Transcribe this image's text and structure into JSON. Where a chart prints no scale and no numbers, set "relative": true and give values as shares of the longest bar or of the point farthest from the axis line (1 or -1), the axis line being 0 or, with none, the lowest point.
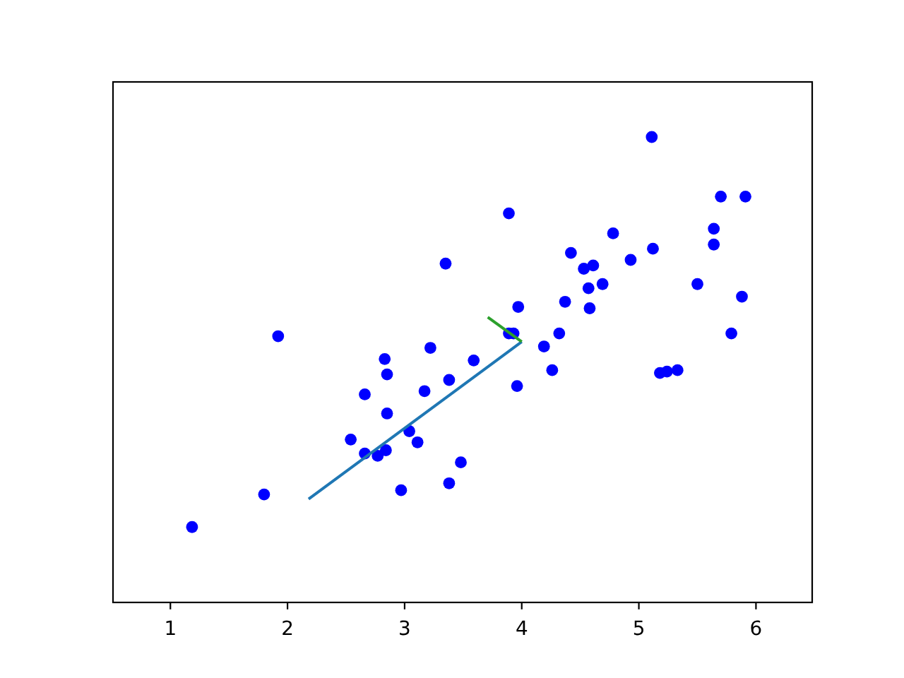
{
  "chart_data": {
    "type": "scatter",
    "relative": true,
    "xlim": [
      0.51,
      6.48
    ],
    "xticks": [
      1,
      2,
      3,
      4,
      5,
      6
    ],
    "tick_labels": "x",
    "marker": "circle",
    "series": [
      {
        "color": "#0000ff",
        "x": [
          1.185,
          1.8,
          1.92,
          2.54,
          2.66,
          2.66,
          2.77,
          2.84,
          2.83,
          2.85,
          2.85,
          2.97,
          3.04,
          3.11,
          3.17,
          3.22,
          3.35,
          3.38,
          3.38,
          3.48,
          3.59,
          3.89,
          3.89,
          3.93,
          3.96,
          3.97,
          4.19,
          4.26,
          4.32,
          4.37,
          4.42,
          4.53,
          4.61,
          4.57,
          4.58,
          4.69,
          4.78,
          4.93,
          5.11,
          5.12,
          5.18,
          5.24,
          5.33,
          5.5,
          5.64,
          5.64,
          5.7,
          5.79,
          5.88,
          5.91
        ],
        "values": [
          0.162,
          0.232,
          0.572,
          0.35,
          0.447,
          0.32,
          0.315,
          0.327,
          0.523,
          0.49,
          0.406,
          0.241,
          0.368,
          0.344,
          0.454,
          0.547,
          0.728,
          0.478,
          0.256,
          0.301,
          0.52,
          0.836,
          0.578,
          0.578,
          0.465,
          0.635,
          0.55,
          0.499,
          0.578,
          0.646,
          0.751,
          0.717,
          0.724,
          0.675,
          0.632,
          0.684,
          0.793,
          0.736,
          1,
          0.76,
          0.493,
          0.496,
          0.499,
          0.684,
          0.803,
          0.769,
          0.872,
          0.578,
          0.657,
          0.872
        ]
      },
      {
        "type": "line",
        "color": "#1f77b4",
        "marker": "none",
        "x": [
          2.18,
          4.0
        ],
        "values": [
          0.222,
          0.56
        ]
      },
      {
        "type": "line",
        "color": "#2ca02c",
        "marker": "none",
        "x": [
          3.71,
          4.0
        ],
        "values": [
          0.613,
          0.56
        ]
      }
    ]
  }
}
